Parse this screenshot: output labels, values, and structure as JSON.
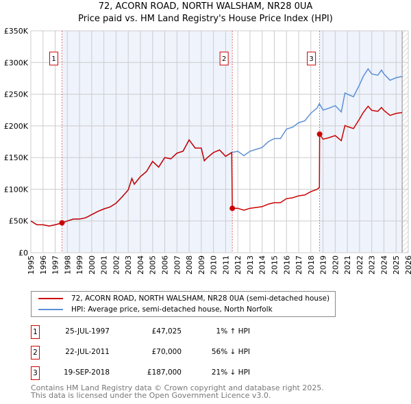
{
  "chart_data": {
    "type": "line",
    "title": "72, ACORN ROAD, NORTH WALSHAM, NR28 0UA",
    "subtitle": "Price paid vs. HM Land Registry's House Price Index (HPI)",
    "xlim": [
      1995,
      2026
    ],
    "ylim": [
      0,
      350000
    ],
    "x_ticks": [
      "1995",
      "1996",
      "1997",
      "1998",
      "1999",
      "2000",
      "2001",
      "2002",
      "2003",
      "2004",
      "2005",
      "2006",
      "2007",
      "2008",
      "2009",
      "2010",
      "2011",
      "2012",
      "2013",
      "2014",
      "2015",
      "2016",
      "2017",
      "2018",
      "2019",
      "2020",
      "2021",
      "2022",
      "2023",
      "2024",
      "2025",
      "2026"
    ],
    "y_ticks": [
      {
        "v": 0,
        "label": "£0"
      },
      {
        "v": 50000,
        "label": "£50K"
      },
      {
        "v": 100000,
        "label": "£100K"
      },
      {
        "v": 150000,
        "label": "£150K"
      },
      {
        "v": 200000,
        "label": "£200K"
      },
      {
        "v": 250000,
        "label": "£250K"
      },
      {
        "v": 300000,
        "label": "£300K"
      },
      {
        "v": 350000,
        "label": "£350K"
      }
    ],
    "grid": true,
    "colors": {
      "property": "#cc0000",
      "hpi": "#5b8fd6",
      "shade": "#eef3fc"
    },
    "series": [
      {
        "name": "72, ACORN ROAD, NORTH WALSHAM, NR28 0UA (semi-detached house)",
        "x": [
          1995,
          1995.5,
          1996,
          1996.5,
          1997,
          1997.56,
          1998,
          1998.5,
          1999,
          1999.5,
          2000,
          2000.5,
          2001,
          2001.5,
          2002,
          2002.5,
          2003,
          2003.3,
          2003.5,
          2004,
          2004.5,
          2005,
          2005.5,
          2006,
          2006.5,
          2007,
          2007.5,
          2008,
          2008.5,
          2009,
          2009.25,
          2009.5,
          2010,
          2010.5,
          2011,
          2011.5,
          2011.55,
          2012,
          2012.5,
          2013,
          2013.5,
          2014,
          2014.5,
          2015,
          2015.5,
          2016,
          2016.5,
          2017,
          2017.5,
          2018,
          2018.5,
          2018.7,
          2018.72,
          2019,
          2019.5,
          2020,
          2020.5,
          2020.8,
          2021,
          2021.5,
          2022,
          2022.3,
          2022.7,
          2023,
          2023.5,
          2023.8,
          2024,
          2024.5,
          2025,
          2025.5
        ],
        "values": [
          50000,
          44000,
          44000,
          42000,
          44000,
          47025,
          50000,
          53000,
          53000,
          55000,
          60000,
          65000,
          69000,
          72000,
          78000,
          88000,
          99000,
          117000,
          108000,
          120000,
          128000,
          144000,
          135000,
          150000,
          148000,
          157000,
          160000,
          178000,
          165000,
          165000,
          145000,
          150000,
          158000,
          162000,
          152000,
          158000,
          70000,
          70000,
          67000,
          70000,
          71300,
          72600,
          76600,
          78800,
          78800,
          85300,
          86600,
          89700,
          91000,
          96300,
          99800,
          102800,
          187000,
          179000,
          181500,
          184700,
          176700,
          200600,
          199000,
          195800,
          211000,
          221000,
          231000,
          224500,
          223000,
          229000,
          224500,
          216500,
          219700,
          221000
        ]
      },
      {
        "name": "HPI: Average price, semi-detached house, North Norfolk",
        "x": [
          1995,
          1995.5,
          1996,
          1996.5,
          1997,
          1997.56,
          1998,
          1998.5,
          1999,
          1999.5,
          2000,
          2000.5,
          2001,
          2001.5,
          2002,
          2002.5,
          2003,
          2003.3,
          2003.5,
          2004,
          2004.5,
          2005,
          2005.5,
          2006,
          2006.5,
          2007,
          2007.5,
          2008,
          2008.5,
          2009,
          2009.25,
          2009.5,
          2010,
          2010.5,
          2011,
          2011.5,
          2012,
          2012.5,
          2013,
          2013.5,
          2014,
          2014.5,
          2015,
          2015.5,
          2016,
          2016.5,
          2017,
          2017.5,
          2018,
          2018.5,
          2018.7,
          2019,
          2019.5,
          2020,
          2020.5,
          2020.8,
          2021,
          2021.5,
          2022,
          2022.3,
          2022.7,
          2023,
          2023.5,
          2023.8,
          2024,
          2024.5,
          2025,
          2025.5
        ],
        "values": [
          50000,
          44000,
          44000,
          42000,
          44000,
          46500,
          50000,
          53000,
          53000,
          55000,
          60000,
          65000,
          69000,
          72000,
          78000,
          88000,
          99000,
          117000,
          108000,
          120000,
          128000,
          144000,
          135000,
          150000,
          148000,
          157000,
          160000,
          178000,
          165000,
          165000,
          145000,
          150000,
          158000,
          162000,
          152000,
          158000,
          160000,
          153000,
          160000,
          163000,
          166000,
          175000,
          180000,
          180000,
          195000,
          198000,
          205000,
          208000,
          220000,
          228000,
          235000,
          225000,
          228000,
          232000,
          222000,
          252000,
          250000,
          246000,
          265000,
          278000,
          290000,
          282000,
          280000,
          288000,
          282000,
          272000,
          276000,
          278000
        ]
      }
    ],
    "sales": [
      {
        "n": "1",
        "x": 1997.56,
        "date": "25-JUL-1997",
        "price": 47025,
        "price_label": "£47,025",
        "hpi": "1% ↑ HPI"
      },
      {
        "n": "2",
        "x": 2011.55,
        "date": "22-JUL-2011",
        "price": 70000,
        "price_label": "£70,000",
        "hpi": "56% ↓ HPI"
      },
      {
        "n": "3",
        "x": 2018.72,
        "date": "19-SEP-2018",
        "price": 187000,
        "price_label": "£187,000",
        "hpi": "21% ↓ HPI"
      }
    ],
    "shaded_ranges": [
      [
        1997.56,
        2011.55
      ],
      [
        2018.72,
        2025.5
      ]
    ],
    "forecast_from": 2025.5
  },
  "footer": {
    "line1": "Contains HM Land Registry data © Crown copyright and database right 2025.",
    "line2": "This data is licensed under the Open Government Licence v3.0."
  }
}
